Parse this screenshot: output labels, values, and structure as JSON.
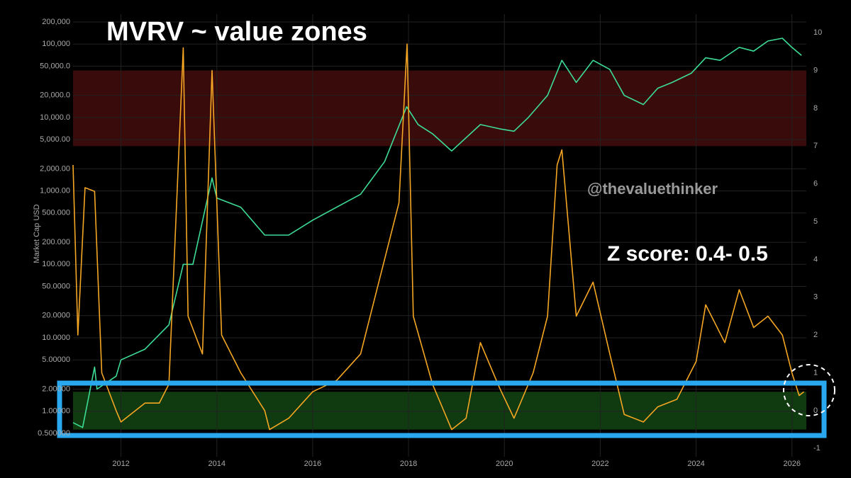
{
  "chart_data": {
    "type": "line",
    "title": "MVRV ~ value zones",
    "annotations": [
      "@thevaluethinker",
      "Z score: 0.4- 0.5"
    ],
    "y_label": "Market Cap USD",
    "log_y": true,
    "xlim": [
      2011,
      2026.3
    ],
    "xticks": [
      2012,
      2014,
      2016,
      2018,
      2020,
      2022,
      2024,
      2026
    ],
    "ylim": [
      0.24,
      255000
    ],
    "yticks": [
      {
        "value": 0.5,
        "label": "0.500000"
      },
      {
        "value": 1,
        "label": "1.00000"
      },
      {
        "value": 2,
        "label": "2.00000"
      },
      {
        "value": 5,
        "label": "5.00000"
      },
      {
        "value": 10,
        "label": "10.0000"
      },
      {
        "value": 20,
        "label": "20.0000"
      },
      {
        "value": 50,
        "label": "50.0000"
      },
      {
        "value": 100,
        "label": "100.000"
      },
      {
        "value": 200,
        "label": "200.000"
      },
      {
        "value": 500,
        "label": "500.000"
      },
      {
        "value": 1000,
        "label": "1,000.00"
      },
      {
        "value": 2000,
        "label": "2,000.00"
      },
      {
        "value": 5000,
        "label": "5,000.00"
      },
      {
        "value": 10000,
        "label": "10,000.0"
      },
      {
        "value": 20000,
        "label": "20,000.0"
      },
      {
        "value": 50000,
        "label": "50,000.0"
      },
      {
        "value": 100000,
        "label": "100,000"
      },
      {
        "value": 200000,
        "label": "200,000"
      }
    ],
    "y2lim": [
      -1.22,
      10.49
    ],
    "y2ticks": [
      -1,
      0,
      1,
      2,
      3,
      4,
      5,
      6,
      7,
      8,
      9,
      10
    ],
    "bands": [
      {
        "y2range": [
          7,
          9
        ],
        "color": "#3a0b0b"
      },
      {
        "y2range": [
          -0.5,
          0.5
        ],
        "color": "#103a10"
      }
    ],
    "series": [
      {
        "color": "#3ddc97",
        "x": [
          2011.0,
          2011.2,
          2011.45,
          2011.5,
          2011.9,
          2012.0,
          2012.5,
          2013.0,
          2013.3,
          2013.5,
          2013.9,
          2014.0,
          2014.5,
          2015.0,
          2015.5,
          2016.0,
          2016.5,
          2017.0,
          2017.5,
          2017.96,
          2018.2,
          2018.5,
          2018.9,
          2019.5,
          2019.9,
          2020.2,
          2020.5,
          2020.9,
          2021.2,
          2021.5,
          2021.85,
          2022.2,
          2022.5,
          2022.9,
          2023.2,
          2023.5,
          2023.9,
          2024.2,
          2024.5,
          2024.9,
          2025.2,
          2025.5,
          2025.8,
          2026.0,
          2026.2
        ],
        "values": [
          0.7,
          0.6,
          4,
          2,
          3,
          5,
          7,
          15,
          100,
          100,
          1500,
          800,
          600,
          250,
          250,
          400,
          600,
          900,
          2500,
          14000,
          8000,
          6000,
          3500,
          8000,
          7000,
          6500,
          10000,
          20000,
          60000,
          30000,
          60000,
          45000,
          20000,
          15000,
          25000,
          30000,
          40000,
          65000,
          60000,
          90000,
          80000,
          110000,
          120000,
          90000,
          70000
        ]
      },
      {
        "color": "#f5a623",
        "axis": "y2",
        "x": [
          2011.0,
          2011.1,
          2011.25,
          2011.45,
          2011.6,
          2011.9,
          2012.0,
          2012.5,
          2012.8,
          2013.0,
          2013.3,
          2013.4,
          2013.7,
          2013.9,
          2014.1,
          2014.5,
          2015.0,
          2015.1,
          2015.5,
          2016.0,
          2016.5,
          2017.0,
          2017.4,
          2017.8,
          2017.97,
          2018.1,
          2018.5,
          2018.9,
          2019.2,
          2019.5,
          2019.9,
          2020.2,
          2020.6,
          2020.9,
          2021.1,
          2021.2,
          2021.5,
          2021.85,
          2022.2,
          2022.5,
          2022.9,
          2023.2,
          2023.6,
          2024.0,
          2024.2,
          2024.6,
          2024.9,
          2025.2,
          2025.5,
          2025.8,
          2026.0,
          2026.15,
          2026.25
        ],
        "values": [
          6.5,
          2.0,
          5.9,
          5.8,
          1.0,
          0.0,
          -0.3,
          0.2,
          0.2,
          0.7,
          9.6,
          2.5,
          1.5,
          9.0,
          2.0,
          1.0,
          0.0,
          -0.5,
          -0.2,
          0.5,
          0.8,
          1.5,
          3.5,
          5.5,
          9.7,
          2.5,
          0.7,
          -0.5,
          -0.2,
          1.8,
          0.6,
          -0.2,
          1.0,
          2.5,
          6.5,
          6.9,
          2.5,
          3.4,
          1.5,
          -0.1,
          -0.3,
          0.1,
          0.3,
          1.3,
          2.8,
          1.8,
          3.2,
          2.2,
          2.5,
          2.0,
          1.0,
          0.4,
          0.5
        ]
      }
    ]
  }
}
